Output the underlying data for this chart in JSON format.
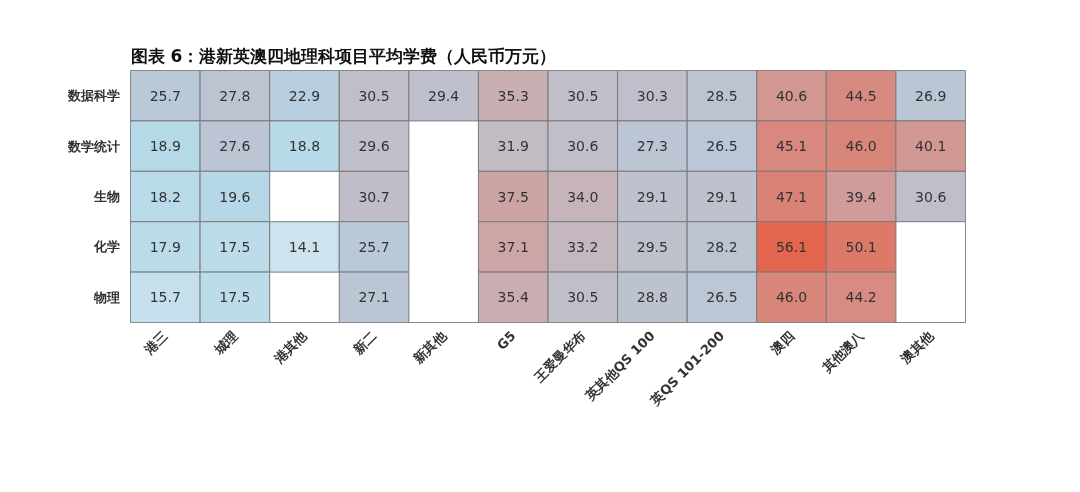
{
  "chart_data": {
    "type": "heatmap",
    "title": "图表 6：港新英澳四地理科项目平均学费（人民币万元）",
    "categories": [
      "港三",
      "城理",
      "港其他",
      "新二",
      "新其他",
      "G5",
      "王爱曼华布",
      "英其他QS 100",
      "英QS 101-200",
      "澳四",
      "其他澳八",
      "澳其他"
    ],
    "y_categories": [
      "数据科学",
      "数学统计",
      "生物",
      "化学",
      "物理"
    ],
    "cells": [
      [
        25.7,
        27.8,
        22.9,
        30.5,
        29.4,
        35.3,
        30.5,
        30.3,
        28.5,
        40.6,
        44.5,
        26.9
      ],
      [
        18.9,
        27.6,
        18.8,
        29.6,
        null,
        31.9,
        30.6,
        27.3,
        26.5,
        45.1,
        46.0,
        40.1
      ],
      [
        18.2,
        19.6,
        null,
        30.7,
        null,
        37.5,
        34.0,
        29.1,
        29.1,
        47.1,
        39.4,
        30.6
      ],
      [
        17.9,
        17.5,
        14.1,
        25.7,
        null,
        37.1,
        33.2,
        29.5,
        28.2,
        56.1,
        50.1,
        null
      ],
      [
        15.7,
        17.5,
        null,
        27.1,
        null,
        35.4,
        30.5,
        28.8,
        26.5,
        46.0,
        44.2,
        null
      ]
    ],
    "cell_labels": [
      [
        "25.7",
        "27.8",
        "22.9",
        "30.5",
        "29.4",
        "35.3",
        "30.5",
        "30.3",
        "28.5",
        "40.6",
        "44.5",
        "26.9"
      ],
      [
        "18.9",
        "27.6",
        "18.8",
        "29.6",
        null,
        "31.9",
        "30.6",
        "27.3",
        "26.5",
        "45.1",
        "46.0",
        "40.1"
      ],
      [
        "18.2",
        "19.6",
        null,
        "30.7",
        null,
        "37.5",
        "34.0",
        "29.1",
        "29.1",
        "47.1",
        "39.4",
        "30.6"
      ],
      [
        "17.9",
        "17.5",
        "14.1",
        "25.7",
        null,
        "37.1",
        "33.2",
        "29.5",
        "28.2",
        "56.1",
        "50.1",
        null
      ],
      [
        "15.7",
        "17.5",
        null,
        "27.1",
        null,
        "35.4",
        "30.5",
        "28.8",
        "26.5",
        "46.0",
        "44.2",
        null
      ]
    ],
    "data_labels": true
  }
}
